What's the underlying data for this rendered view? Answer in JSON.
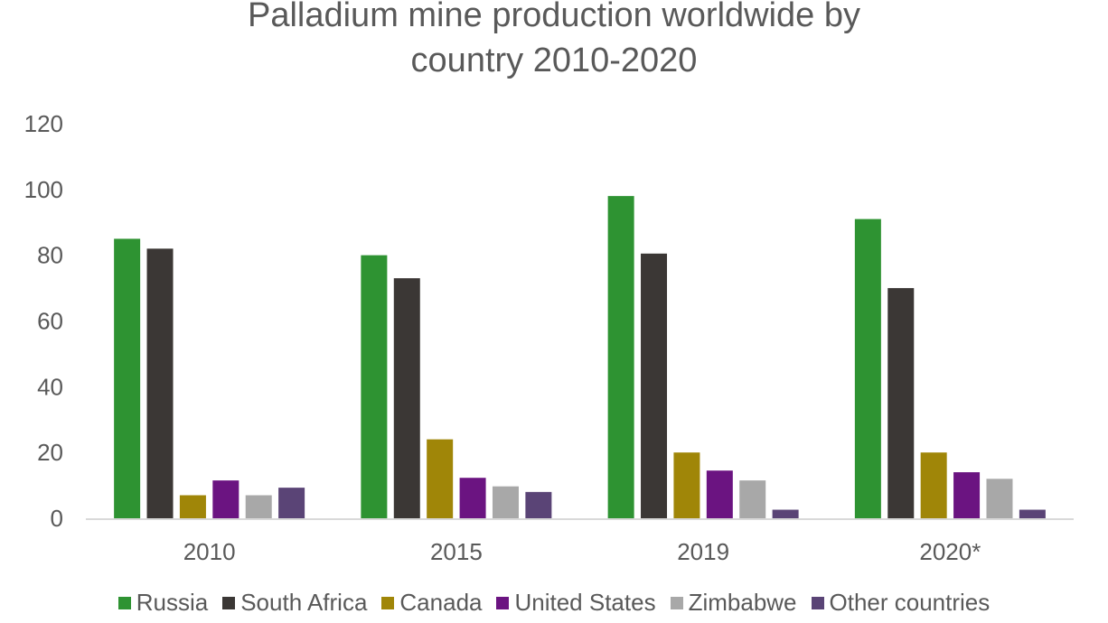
{
  "chart_data": {
    "type": "bar",
    "title_lines": [
      "Palladium mine production worldwide by",
      "country 2010-2020"
    ],
    "categories": [
      "2010",
      "2015",
      "2019",
      "2020*"
    ],
    "ylim": [
      0,
      120
    ],
    "yticks": [
      0,
      20,
      40,
      60,
      80,
      100,
      120
    ],
    "grid": false,
    "legend_position": "bottom",
    "series": [
      {
        "name": "Russia",
        "color": "#2e9332",
        "values": [
          85,
          80,
          98,
          91
        ]
      },
      {
        "name": "South Africa",
        "color": "#3b3735",
        "values": [
          82,
          73,
          80.5,
          70
        ]
      },
      {
        "name": "Canada",
        "color": "#a08608",
        "values": [
          7,
          24,
          20,
          20
        ]
      },
      {
        "name": "United States",
        "color": "#6b1481",
        "values": [
          11.5,
          12.3,
          14.5,
          14
        ]
      },
      {
        "name": "Zimbabwe",
        "color": "#a8a8a8",
        "values": [
          7,
          9.7,
          11.5,
          12
        ]
      },
      {
        "name": "Other countries",
        "color": "#5a4476",
        "values": [
          9.3,
          8,
          2.6,
          2.6
        ]
      }
    ]
  }
}
